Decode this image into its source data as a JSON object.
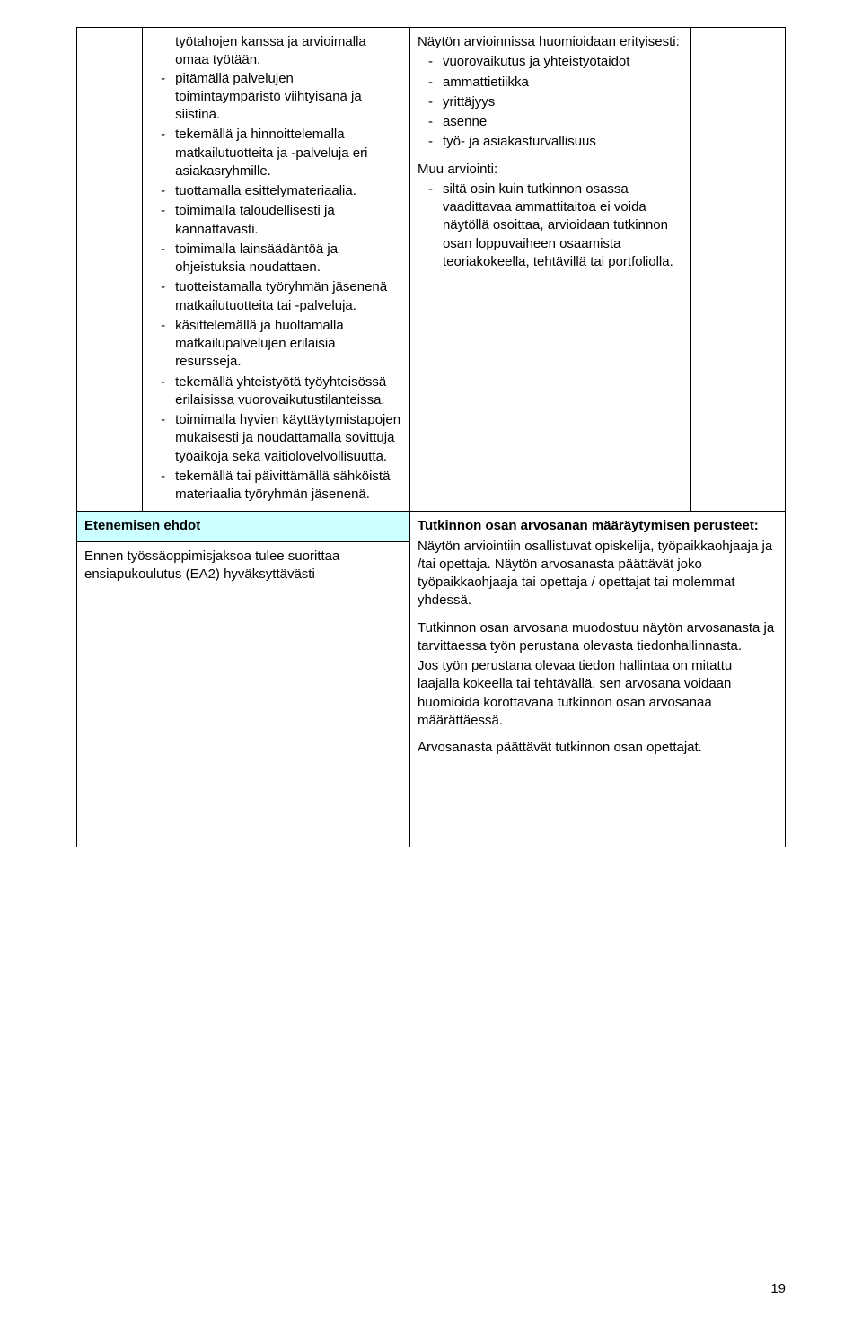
{
  "colors": {
    "page_bg": "#ffffff",
    "header_bg": "#ccffff",
    "border": "#000000",
    "text": "#000000"
  },
  "typography": {
    "font_family": "Arial",
    "body_size_pt": 11,
    "line_height": 1.35
  },
  "top_section": {
    "left_intro": "työtahojen kanssa ja arvioimalla omaa työtään.",
    "left_items": [
      "pitämällä palvelujen toimintaympäristö viihtyisänä ja siistinä.",
      "tekemällä ja hinnoittelemalla matkailutuotteita ja -palveluja eri asiakasryhmille.",
      "tuottamalla esittelymateriaalia.",
      "toimimalla taloudellisesti ja kannattavasti.",
      "toimimalla lainsäädäntöä ja ohjeistuksia noudattaen.",
      "tuotteistamalla työryhmän jäsenenä matkailutuotteita tai -palveluja.",
      "käsittelemällä ja huoltamalla matkailupalvelujen erilaisia resursseja.",
      "tekemällä yhteistyötä työyhteisössä erilaisissa vuorovaikutustilanteissa.",
      "toimimalla hyvien käyttäytymistapojen mukaisesti ja noudattamalla sovittuja työaikoja sekä vaitiolovelvollisuutta.",
      "tekemällä tai päivittämällä sähköistä materiaalia työryhmän jäsenenä."
    ],
    "right_intro": "Näytön arvioinnissa huomioidaan erityisesti:",
    "right_items": [
      "vuorovaikutus ja yhteistyötaidot",
      "ammattietiikka",
      "yrittäjyys",
      "asenne",
      "työ- ja asiakasturvallisuus"
    ],
    "right_sub_heading": "Muu arviointi:",
    "right_sub_items": [
      "siltä osin kuin tutkinnon osassa vaadittavaa ammattitaitoa ei voida näytöllä osoittaa, arvioidaan tutkinnon osan loppuvaiheen osaamista teoriakokeella, tehtävillä tai portfoliolla."
    ]
  },
  "bottom_section": {
    "left_header": "Etenemisen ehdot",
    "left_body": "Ennen työssäoppimisjaksoa tulee suorittaa ensiapukoulutus (EA2) hyväksyttävästi",
    "right_header": "Tutkinnon osan arvosanan määräytymisen perusteet:",
    "right_paras": [
      "Näytön arviointiin osallistuvat opiskelija, työpaikkaohjaaja ja /tai opettaja. Näytön arvosanasta päättävät joko työpaikkaohjaaja tai opettaja / opettajat tai molemmat yhdessä.",
      "Tutkinnon osan arvosana muodostuu näytön arvosanasta ja tarvittaessa työn perustana olevasta tiedonhallinnasta.",
      "Jos työn perustana olevaa tiedon hallintaa on mitattu laajalla kokeella tai tehtävällä, sen arvosana voidaan huomioida korottavana tutkinnon osan arvosanaa määrättäessä.",
      "Arvosanasta päättävät tutkinnon osan opettajat."
    ]
  },
  "page_number": "19"
}
